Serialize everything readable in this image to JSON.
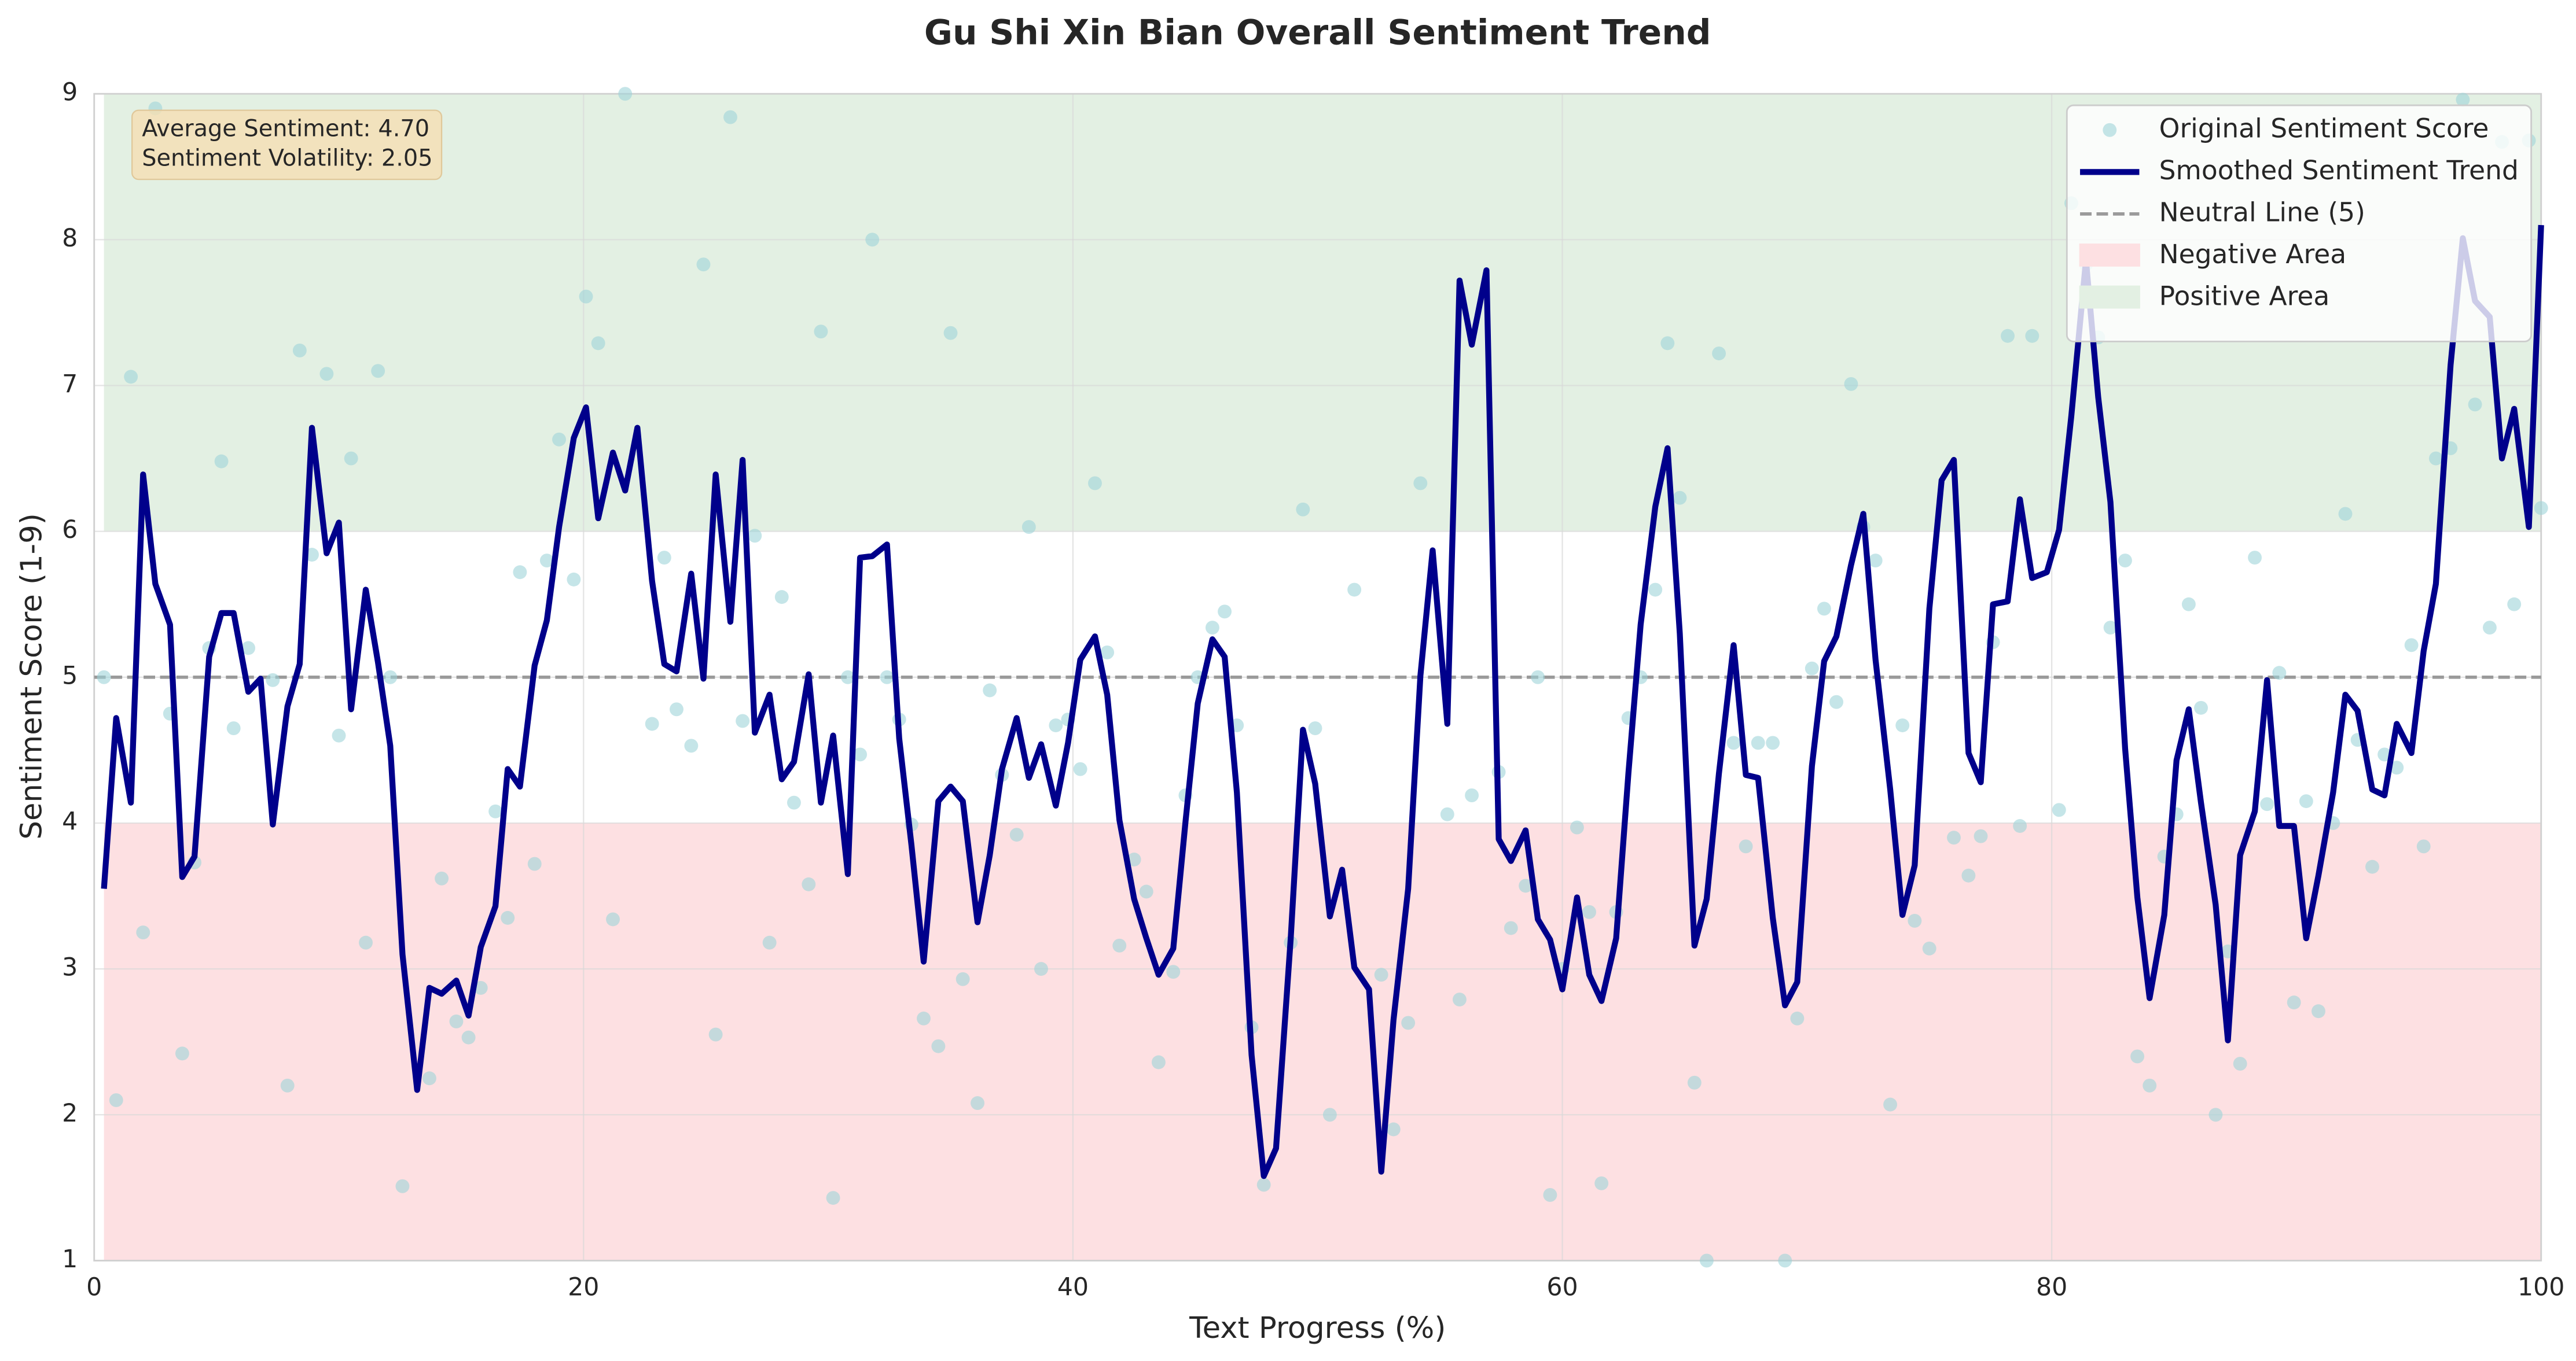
{
  "chart_data": {
    "type": "line",
    "title": "Gu Shi Xin Bian Overall Sentiment Trend",
    "x_label": "Text Progress (%)",
    "y_label": "Sentiment Score (1-9)",
    "annotations": [
      "Average Sentiment: 4.70",
      "Sentiment Volatility: 2.05"
    ],
    "xlim": [
      0,
      100
    ],
    "xticks": [
      0,
      20,
      40,
      60,
      80,
      100
    ],
    "ylim": [
      1,
      9
    ],
    "yticks": [
      1,
      2,
      3,
      4,
      5,
      6,
      7,
      8,
      9
    ],
    "grid": true,
    "legend": "upper right",
    "bands": [
      {
        "name": "Negative Area",
        "from": 1,
        "to": 4,
        "color": "#fde0e2"
      },
      {
        "name": "Positive Area",
        "from": 6,
        "to": 9,
        "color": "#e3f0e3"
      }
    ],
    "reference_lines": [
      {
        "name": "Neutral Line (5)",
        "value": 5,
        "color": "#9a9a9a"
      }
    ],
    "x": [
      0.4,
      0.9,
      1.5,
      2.0,
      2.5,
      3.1,
      3.6,
      4.1,
      4.7,
      5.2,
      5.7,
      6.3,
      6.8,
      7.3,
      7.9,
      8.4,
      8.9,
      9.5,
      10.0,
      10.5,
      11.1,
      11.6,
      12.1,
      12.6,
      13.2,
      13.7,
      14.2,
      14.8,
      15.3,
      15.8,
      16.4,
      16.9,
      17.4,
      18.0,
      18.5,
      19.0,
      19.6,
      20.1,
      20.6,
      21.2,
      21.7,
      22.2,
      22.8,
      23.3,
      23.8,
      24.4,
      24.9,
      25.4,
      26.0,
      26.5,
      27.0,
      27.6,
      28.1,
      28.6,
      29.2,
      29.7,
      30.2,
      30.8,
      31.3,
      31.8,
      32.4,
      32.9,
      33.4,
      33.9,
      34.5,
      35.0,
      35.5,
      36.1,
      36.6,
      37.1,
      37.7,
      38.2,
      38.7,
      39.3,
      39.8,
      40.3,
      40.9,
      41.4,
      41.9,
      42.5,
      43.0,
      43.5,
      44.1,
      44.6,
      45.1,
      45.7,
      46.2,
      46.7,
      47.3,
      47.8,
      48.3,
      48.9,
      49.4,
      49.9,
      50.5,
      51.0,
      51.5,
      52.1,
      52.6,
      53.1,
      53.7,
      54.2,
      54.7,
      55.3,
      55.8,
      56.3,
      56.9,
      57.4,
      57.9,
      58.5,
      59.0,
      59.5,
      60.0,
      60.6,
      61.1,
      61.6,
      62.2,
      62.7,
      63.2,
      63.8,
      64.3,
      64.8,
      65.4,
      65.9,
      66.4,
      67.0,
      67.5,
      68.0,
      68.6,
      69.1,
      69.6,
      70.2,
      70.7,
      71.2,
      71.8,
      72.3,
      72.8,
      73.4,
      73.9,
      74.4,
      75.0,
      75.5,
      76.0,
      76.6,
      77.1,
      77.6,
      78.2,
      78.7,
      79.2,
      79.8,
      80.3,
      80.8,
      81.4,
      81.9,
      82.4,
      83.0,
      83.5,
      84.0,
      84.6,
      85.1,
      85.6,
      86.1,
      86.7,
      87.2,
      87.7,
      88.3,
      88.8,
      89.3,
      89.9,
      90.4,
      90.9,
      91.5,
      92.0,
      92.5,
      93.1,
      93.6,
      94.1,
      94.7,
      95.2,
      95.7,
      96.3,
      96.8,
      97.3,
      97.9,
      98.4,
      98.9,
      99.5,
      100.0
    ],
    "series": [
      {
        "name": "Original Sentiment Score",
        "type": "scatter",
        "color": "#9fd3d8",
        "values": [
          5.0,
          2.1,
          7.06,
          3.25,
          8.9,
          4.75,
          2.42,
          3.73,
          5.2,
          6.48,
          4.65,
          5.2,
          null,
          4.98,
          2.2,
          7.24,
          5.84,
          7.08,
          4.6,
          6.5,
          3.18,
          7.1,
          5.0,
          1.51,
          null,
          2.25,
          3.62,
          2.64,
          2.53,
          2.87,
          4.08,
          3.35,
          5.72,
          3.72,
          5.8,
          6.63,
          5.67,
          7.61,
          7.29,
          3.34,
          9.0,
          null,
          4.68,
          5.82,
          4.78,
          4.53,
          7.83,
          2.55,
          8.84,
          4.7,
          5.97,
          3.18,
          5.55,
          4.14,
          3.58,
          7.37,
          1.43,
          5.0,
          4.47,
          8.0,
          5.0,
          4.71,
          3.99,
          2.66,
          2.47,
          7.36,
          2.93,
          2.08,
          4.91,
          4.33,
          3.92,
          6.03,
          3.0,
          4.67,
          4.71,
          4.37,
          6.33,
          5.17,
          3.16,
          3.75,
          3.53,
          2.36,
          2.98,
          4.19,
          5.0,
          5.34,
          5.45,
          4.67,
          2.6,
          1.52,
          null,
          3.18,
          6.15,
          4.65,
          2.0,
          null,
          5.6,
          null,
          2.96,
          1.9,
          2.63,
          6.33,
          null,
          4.06,
          2.79,
          4.19,
          null,
          4.35,
          3.28,
          3.57,
          5.0,
          1.45,
          3.0,
          3.97,
          3.39,
          1.53,
          3.39,
          4.72,
          5.0,
          5.6,
          7.29,
          6.23,
          2.22,
          1.0,
          7.22,
          4.55,
          3.84,
          4.55,
          4.55,
          1.0,
          2.66,
          5.06,
          5.47,
          4.83,
          7.01,
          6.03,
          5.8,
          2.07,
          4.67,
          3.33,
          3.14,
          null,
          3.9,
          3.64,
          3.91,
          5.24,
          7.34,
          3.98,
          7.34,
          null,
          4.09,
          8.25,
          7.83,
          7.33,
          5.34,
          5.8,
          2.4,
          2.2,
          3.77,
          4.06,
          5.5,
          4.79,
          2.0,
          3.12,
          2.35,
          5.82,
          4.13,
          5.03,
          2.77,
          4.15,
          2.71,
          4.0,
          6.12,
          4.57,
          3.7,
          4.47,
          4.38,
          5.22,
          3.84,
          6.5,
          6.57,
          8.96,
          6.87,
          5.34,
          8.67,
          5.5,
          8.68,
          6.16
        ]
      },
      {
        "name": "Smoothed Sentiment Trend",
        "type": "line",
        "color": "#00008b",
        "values": [
          3.55,
          4.72,
          4.14,
          6.39,
          5.64,
          5.36,
          3.63,
          3.77,
          5.14,
          5.44,
          5.44,
          4.9,
          4.99,
          3.99,
          4.8,
          5.09,
          6.71,
          5.85,
          6.06,
          4.78,
          5.6,
          5.1,
          4.53,
          3.1,
          2.17,
          2.87,
          2.83,
          2.92,
          2.68,
          3.15,
          3.43,
          4.37,
          4.25,
          5.08,
          5.39,
          6.03,
          6.64,
          6.85,
          6.09,
          6.54,
          6.28,
          6.71,
          5.66,
          5.09,
          5.04,
          5.71,
          4.99,
          6.39,
          5.38,
          6.49,
          4.62,
          4.88,
          4.3,
          4.42,
          5.02,
          4.14,
          4.6,
          3.65,
          5.82,
          5.83,
          5.91,
          4.58,
          3.85,
          3.05,
          4.15,
          4.25,
          4.15,
          3.32,
          3.78,
          4.37,
          4.72,
          4.31,
          4.54,
          4.12,
          4.55,
          5.12,
          5.28,
          4.88,
          4.02,
          3.48,
          3.21,
          2.96,
          3.14,
          4.01,
          4.82,
          5.26,
          5.14,
          4.21,
          2.41,
          1.58,
          1.77,
          3.21,
          4.64,
          4.27,
          3.36,
          3.68,
          3.01,
          2.86,
          1.61,
          2.65,
          3.55,
          5.01,
          5.87,
          4.68,
          7.72,
          7.28,
          7.79,
          3.89,
          3.74,
          3.95,
          3.34,
          3.2,
          2.86,
          3.49,
          2.96,
          2.78,
          3.21,
          4.34,
          5.36,
          6.17,
          6.57,
          5.3,
          3.16,
          3.48,
          4.34,
          5.22,
          4.33,
          4.31,
          3.35,
          2.75,
          2.91,
          4.39,
          5.11,
          5.28,
          5.77,
          6.12,
          5.12,
          4.23,
          3.37,
          3.71,
          5.47,
          6.35,
          6.49,
          4.48,
          4.28,
          5.5,
          5.52,
          6.22,
          5.68,
          5.72,
          6.01,
          6.79,
          7.86,
          6.92,
          6.2,
          4.51,
          3.49,
          2.8,
          3.37,
          4.43,
          4.78,
          4.14,
          3.44,
          2.51,
          3.78,
          4.08,
          4.98,
          3.98,
          3.98,
          3.21,
          3.64,
          4.21,
          4.88,
          4.77,
          4.23,
          4.19,
          4.68,
          4.48,
          5.18,
          5.64,
          7.14,
          8.01,
          7.58,
          7.47,
          6.5,
          6.84,
          6.03,
          8.1
        ]
      }
    ]
  }
}
